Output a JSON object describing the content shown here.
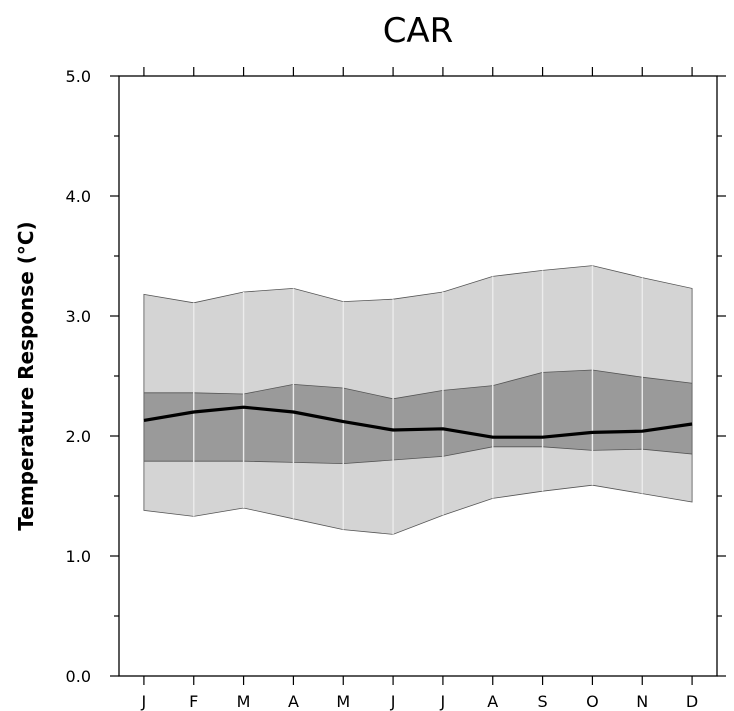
{
  "chart_data": {
    "type": "area",
    "title": "CAR",
    "xlabel": "",
    "ylabel": "Temperature Response (°C)",
    "categories": [
      "J",
      "F",
      "M",
      "A",
      "M",
      "J",
      "J",
      "A",
      "S",
      "O",
      "N",
      "D"
    ],
    "ylim": [
      0,
      5
    ],
    "yticks": [
      "0.0",
      "1.0",
      "2.0",
      "3.0",
      "4.0",
      "5.0"
    ],
    "grid": false,
    "legend": "none",
    "outer_band": {
      "upper": [
        3.18,
        3.11,
        3.2,
        3.23,
        3.12,
        3.14,
        3.2,
        3.33,
        3.38,
        3.42,
        3.32,
        3.23
      ],
      "lower": [
        1.38,
        1.33,
        1.4,
        1.31,
        1.22,
        1.18,
        1.34,
        1.48,
        1.54,
        1.59,
        1.52,
        1.45
      ]
    },
    "inner_band": {
      "upper": [
        2.36,
        2.36,
        2.35,
        2.43,
        2.4,
        2.31,
        2.38,
        2.42,
        2.53,
        2.55,
        2.49,
        2.44
      ],
      "lower": [
        1.79,
        1.79,
        1.79,
        1.78,
        1.77,
        1.8,
        1.83,
        1.91,
        1.91,
        1.88,
        1.89,
        1.85
      ]
    },
    "series": [
      {
        "values": [
          2.13,
          2.2,
          2.24,
          2.2,
          2.12,
          2.05,
          2.06,
          1.99,
          1.99,
          2.03,
          2.04,
          2.1
        ]
      }
    ],
    "colors": {
      "outer_band": "#d4d4d4",
      "inner_band": "#9a9a9a",
      "line": "#000000"
    }
  }
}
